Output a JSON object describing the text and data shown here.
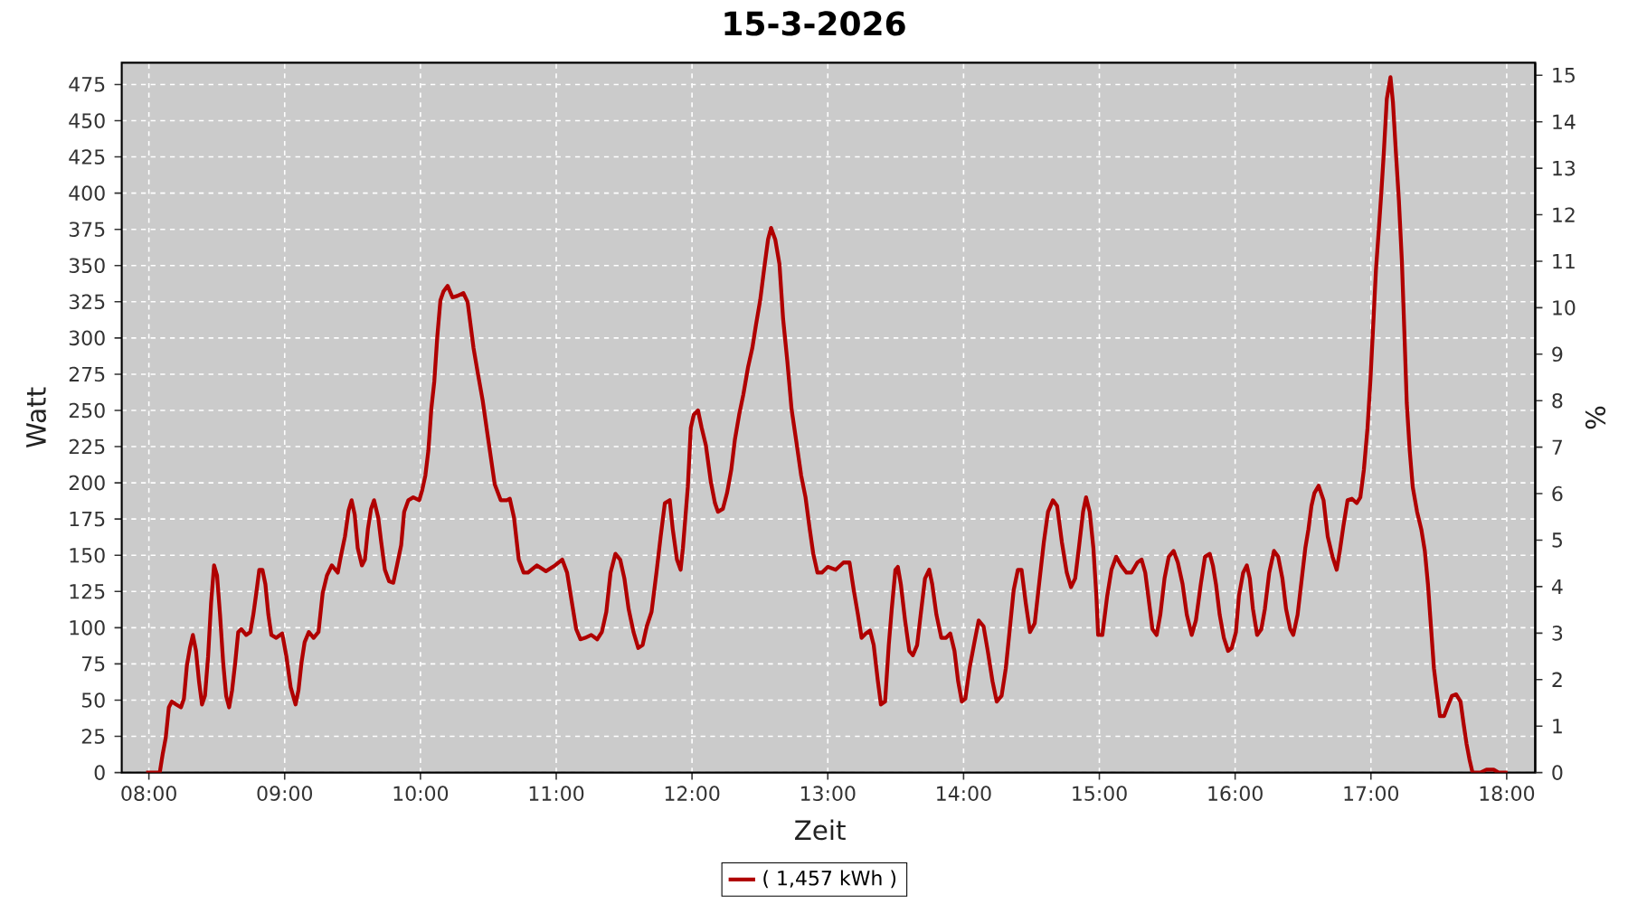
{
  "chart_data": {
    "type": "line",
    "title": "15-3-2026",
    "xlabel": "Zeit",
    "ylabel": "Watt",
    "y2label": "%",
    "x": [
      7.98,
      8.08,
      8.102,
      8.124,
      8.147,
      8.169,
      8.2,
      8.236,
      8.258,
      8.28,
      8.302,
      8.324,
      8.347,
      8.369,
      8.391,
      8.413,
      8.436,
      8.458,
      8.48,
      8.502,
      8.524,
      8.547,
      8.569,
      8.591,
      8.613,
      8.636,
      8.658,
      8.68,
      8.716,
      8.747,
      8.769,
      8.791,
      8.813,
      8.836,
      8.858,
      8.88,
      8.902,
      8.938,
      8.982,
      9.013,
      9.044,
      9.08,
      9.102,
      9.124,
      9.147,
      9.178,
      9.213,
      9.249,
      9.28,
      9.311,
      9.347,
      9.391,
      9.413,
      9.444,
      9.471,
      9.493,
      9.516,
      9.538,
      9.569,
      9.591,
      9.613,
      9.636,
      9.658,
      9.689,
      9.711,
      9.738,
      9.769,
      9.8,
      9.827,
      9.858,
      9.88,
      9.911,
      9.947,
      9.991,
      10.013,
      10.036,
      10.058,
      10.08,
      10.102,
      10.124,
      10.147,
      10.169,
      10.2,
      10.236,
      10.271,
      10.316,
      10.347,
      10.369,
      10.391,
      10.422,
      10.458,
      10.493,
      10.547,
      10.591,
      10.636,
      10.658,
      10.689,
      10.724,
      10.76,
      10.791,
      10.858,
      10.924,
      10.991,
      11.044,
      11.08,
      11.116,
      11.147,
      11.178,
      11.213,
      11.258,
      11.302,
      11.336,
      11.369,
      11.4,
      11.436,
      11.471,
      11.502,
      11.533,
      11.569,
      11.604,
      11.636,
      11.667,
      11.702,
      11.738,
      11.769,
      11.8,
      11.836,
      11.858,
      11.889,
      11.916,
      11.933,
      11.969,
      11.991,
      12.013,
      12.044,
      12.071,
      12.102,
      12.138,
      12.169,
      12.191,
      12.227,
      12.258,
      12.289,
      12.316,
      12.347,
      12.378,
      12.413,
      12.444,
      12.471,
      12.502,
      12.533,
      12.56,
      12.582,
      12.613,
      12.644,
      12.671,
      12.702,
      12.733,
      12.769,
      12.804,
      12.836,
      12.867,
      12.893,
      12.924,
      12.956,
      13.0,
      13.058,
      13.116,
      13.16,
      13.191,
      13.222,
      13.249,
      13.28,
      13.311,
      13.338,
      13.369,
      13.391,
      13.422,
      13.449,
      13.471,
      13.498,
      13.516,
      13.538,
      13.569,
      13.6,
      13.627,
      13.658,
      13.689,
      13.716,
      13.747,
      13.769,
      13.8,
      13.836,
      13.871,
      13.902,
      13.933,
      13.96,
      13.987,
      14.013,
      14.044,
      14.08,
      14.111,
      14.147,
      14.178,
      14.213,
      14.244,
      14.28,
      14.311,
      14.338,
      14.369,
      14.4,
      14.427,
      14.458,
      14.489,
      14.524,
      14.556,
      14.591,
      14.622,
      14.658,
      14.689,
      14.724,
      14.76,
      14.791,
      14.822,
      14.849,
      14.88,
      14.902,
      14.929,
      14.956,
      14.978,
      14.991,
      15.022,
      15.058,
      15.089,
      15.124,
      15.16,
      15.2,
      15.236,
      15.28,
      15.311,
      15.338,
      15.36,
      15.391,
      15.422,
      15.449,
      15.48,
      15.511,
      15.547,
      15.578,
      15.613,
      15.644,
      15.68,
      15.711,
      15.747,
      15.778,
      15.813,
      15.836,
      15.859,
      15.886,
      15.917,
      15.948,
      15.975,
      16.006,
      16.028,
      16.059,
      16.086,
      16.108,
      16.131,
      16.162,
      16.193,
      16.219,
      16.251,
      16.286,
      16.317,
      16.348,
      16.375,
      16.406,
      16.428,
      16.46,
      16.486,
      16.517,
      16.54,
      16.562,
      16.584,
      16.615,
      16.651,
      16.682,
      16.717,
      16.748,
      16.771,
      16.797,
      16.828,
      16.86,
      16.895,
      16.922,
      16.948,
      16.975,
      16.997,
      17.019,
      17.037,
      17.059,
      17.077,
      17.095,
      17.117,
      17.144,
      17.162,
      17.184,
      17.206,
      17.228,
      17.246,
      17.264,
      17.286,
      17.308,
      17.34,
      17.371,
      17.397,
      17.42,
      17.442,
      17.464,
      17.486,
      17.508,
      17.539,
      17.571,
      17.597,
      17.628,
      17.66,
      17.682,
      17.704,
      17.726,
      17.748,
      17.806,
      17.851,
      17.904,
      17.94,
      18.006
    ],
    "series": [
      {
        "name": "( 1,457 kWh )",
        "color": "#b00000",
        "values": [
          0,
          0,
          13,
          24,
          45,
          49,
          47,
          45,
          51,
          74,
          86,
          95,
          84,
          63,
          47,
          53,
          80,
          117,
          143,
          136,
          109,
          76,
          53,
          45,
          57,
          76,
          97,
          99,
          95,
          97,
          109,
          124,
          140,
          140,
          130,
          109,
          95,
          93,
          96,
          80,
          59,
          47,
          57,
          76,
          90,
          97,
          93,
          97,
          124,
          136,
          143,
          138,
          149,
          163,
          181,
          188,
          178,
          155,
          143,
          147,
          168,
          182,
          188,
          176,
          159,
          140,
          132,
          131,
          143,
          157,
          180,
          188,
          190,
          188,
          195,
          205,
          222,
          251,
          270,
          301,
          326,
          332,
          336,
          328,
          329,
          331,
          325,
          309,
          293,
          276,
          257,
          234,
          199,
          188,
          188,
          189,
          176,
          147,
          138,
          138,
          143,
          139,
          143,
          147,
          138,
          117,
          99,
          92,
          93,
          95,
          92,
          97,
          111,
          138,
          151,
          147,
          134,
          113,
          97,
          86,
          88,
          101,
          111,
          138,
          163,
          186,
          188,
          168,
          147,
          140,
          155,
          197,
          238,
          247,
          250,
          238,
          226,
          201,
          186,
          180,
          182,
          193,
          209,
          230,
          247,
          261,
          280,
          293,
          309,
          326,
          349,
          368,
          376,
          368,
          351,
          313,
          284,
          251,
          228,
          205,
          190,
          168,
          151,
          138,
          138,
          142,
          140,
          145,
          145,
          126,
          109,
          93,
          96,
          98,
          88,
          63,
          47,
          49,
          88,
          113,
          140,
          142,
          130,
          105,
          84,
          81,
          88,
          113,
          134,
          140,
          130,
          109,
          93,
          93,
          96,
          84,
          63,
          49,
          51,
          72,
          90,
          105,
          101,
          84,
          63,
          49,
          53,
          72,
          97,
          126,
          140,
          140,
          117,
          97,
          103,
          130,
          159,
          180,
          188,
          184,
          159,
          138,
          128,
          134,
          155,
          180,
          190,
          180,
          155,
          122,
          95,
          95,
          122,
          140,
          149,
          143,
          138,
          138,
          145,
          147,
          138,
          122,
          99,
          95,
          109,
          134,
          149,
          153,
          145,
          130,
          109,
          95,
          105,
          130,
          149,
          151,
          143,
          130,
          109,
          93,
          84,
          86,
          97,
          122,
          138,
          143,
          134,
          113,
          95,
          99,
          113,
          138,
          153,
          149,
          134,
          113,
          99,
          95,
          109,
          130,
          155,
          168,
          184,
          193,
          198,
          188,
          163,
          149,
          140,
          153,
          170,
          188,
          189,
          186,
          190,
          209,
          238,
          272,
          313,
          347,
          376,
          401,
          428,
          465,
          480,
          463,
          428,
          395,
          353,
          305,
          255,
          222,
          197,
          180,
          168,
          153,
          130,
          101,
          72,
          55,
          39,
          39,
          47,
          53,
          54,
          49,
          34,
          20,
          9,
          0,
          0,
          2,
          2,
          0,
          0
        ]
      }
    ],
    "xlim": [
      7.8,
      18.21
    ],
    "ylim": [
      0,
      490
    ],
    "y2lim": [
      0,
      15.27
    ],
    "xticks": [
      {
        "value": 8,
        "label": "08:00"
      },
      {
        "value": 9,
        "label": "09:00"
      },
      {
        "value": 10,
        "label": "10:00"
      },
      {
        "value": 11,
        "label": "11:00"
      },
      {
        "value": 12,
        "label": "12:00"
      },
      {
        "value": 13,
        "label": "13:00"
      },
      {
        "value": 14,
        "label": "14:00"
      },
      {
        "value": 15,
        "label": "15:00"
      },
      {
        "value": 16,
        "label": "16:00"
      },
      {
        "value": 17,
        "label": "17:00"
      },
      {
        "value": 18,
        "label": "18:00"
      }
    ],
    "yticks": [
      0,
      25,
      50,
      75,
      100,
      125,
      150,
      175,
      200,
      225,
      250,
      275,
      300,
      325,
      350,
      375,
      400,
      425,
      450,
      475
    ],
    "y2ticks": [
      0,
      1,
      2,
      3,
      4,
      5,
      6,
      7,
      8,
      9,
      10,
      11,
      12,
      13,
      14,
      15
    ],
    "grid": true,
    "legend": "bottom"
  }
}
